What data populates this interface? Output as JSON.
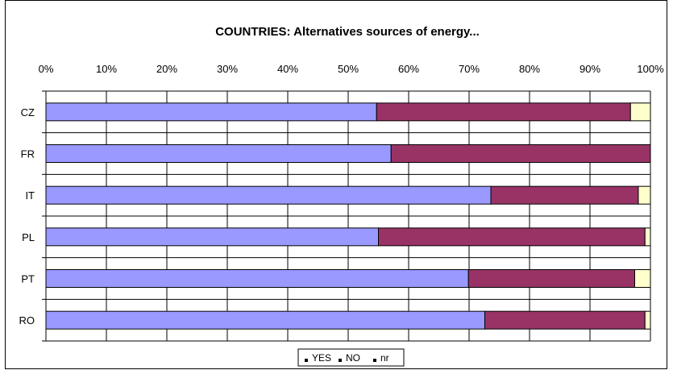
{
  "chart_data": {
    "type": "bar",
    "orientation": "horizontal",
    "stacked": "percent",
    "title": "COUNTRIES: Alternatives sources of energy...",
    "categories": [
      "CZ",
      "FR",
      "IT",
      "PL",
      "PT",
      "RO"
    ],
    "series": [
      {
        "name": "YES",
        "color": "#9999ff",
        "values": [
          54.7,
          57.1,
          73.6,
          55.0,
          69.9,
          72.6
        ]
      },
      {
        "name": "NO",
        "color": "#993366",
        "values": [
          42.0,
          42.9,
          24.4,
          44.1,
          27.5,
          26.5
        ]
      },
      {
        "name": "nr",
        "color": "#ffffcc",
        "values": [
          3.3,
          0.0,
          2.0,
          0.9,
          2.6,
          0.9
        ]
      }
    ],
    "xlim": [
      0,
      100
    ],
    "x_ticks": [
      "0%",
      "10%",
      "20%",
      "30%",
      "40%",
      "50%",
      "60%",
      "70%",
      "80%",
      "90%",
      "100%"
    ],
    "grid": true,
    "legend": "bottom"
  }
}
